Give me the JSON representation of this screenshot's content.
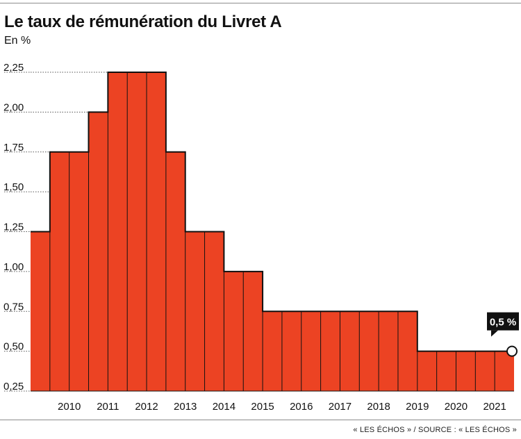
{
  "title": "Le taux de rémunération du Livret A",
  "subtitle": "En %",
  "source": "« LES ÉCHOS » / SOURCE : « LES ÉCHOS »",
  "colors": {
    "fill": "#ec4323",
    "line": "#111111",
    "grid": "#555555",
    "callout_bg": "#111111"
  },
  "chart_data": {
    "type": "area",
    "title": "Le taux de rémunération du Livret A",
    "subtitle": "En %",
    "xlabel": "",
    "ylabel": "",
    "step": true,
    "x_tick_labels": [
      "2010",
      "2011",
      "2012",
      "2013",
      "2014",
      "2015",
      "2016",
      "2017",
      "2018",
      "2019",
      "2020",
      "2021"
    ],
    "y_tick_labels": [
      "0,25",
      "0,50",
      "0,75",
      "1,00",
      "1,25",
      "1,50",
      "1,75",
      "2,00",
      "2,25"
    ],
    "ylim": [
      0.25,
      2.25
    ],
    "xlim": [
      2009.5,
      2022.0
    ],
    "grid": "dotted horizontal",
    "x": [
      2009.5,
      2010.0,
      2010.5,
      2011.0,
      2011.5,
      2012.0,
      2012.5,
      2013.0,
      2013.5,
      2014.0,
      2014.5,
      2015.0,
      2015.5,
      2016.0,
      2016.5,
      2017.0,
      2017.5,
      2018.0,
      2018.5,
      2019.0,
      2019.5,
      2020.0,
      2020.5,
      2021.0,
      2021.5,
      2022.0
    ],
    "series": [
      {
        "values": [
          1.25,
          1.75,
          1.75,
          2.0,
          2.25,
          2.25,
          2.25,
          1.75,
          1.25,
          1.25,
          1.0,
          1.0,
          0.75,
          0.75,
          0.75,
          0.75,
          0.75,
          0.75,
          0.75,
          0.75,
          0.5,
          0.5,
          0.5,
          0.5,
          0.5,
          0.5
        ]
      }
    ],
    "annotation": {
      "label": "0,5 %",
      "value": 0.5
    }
  }
}
